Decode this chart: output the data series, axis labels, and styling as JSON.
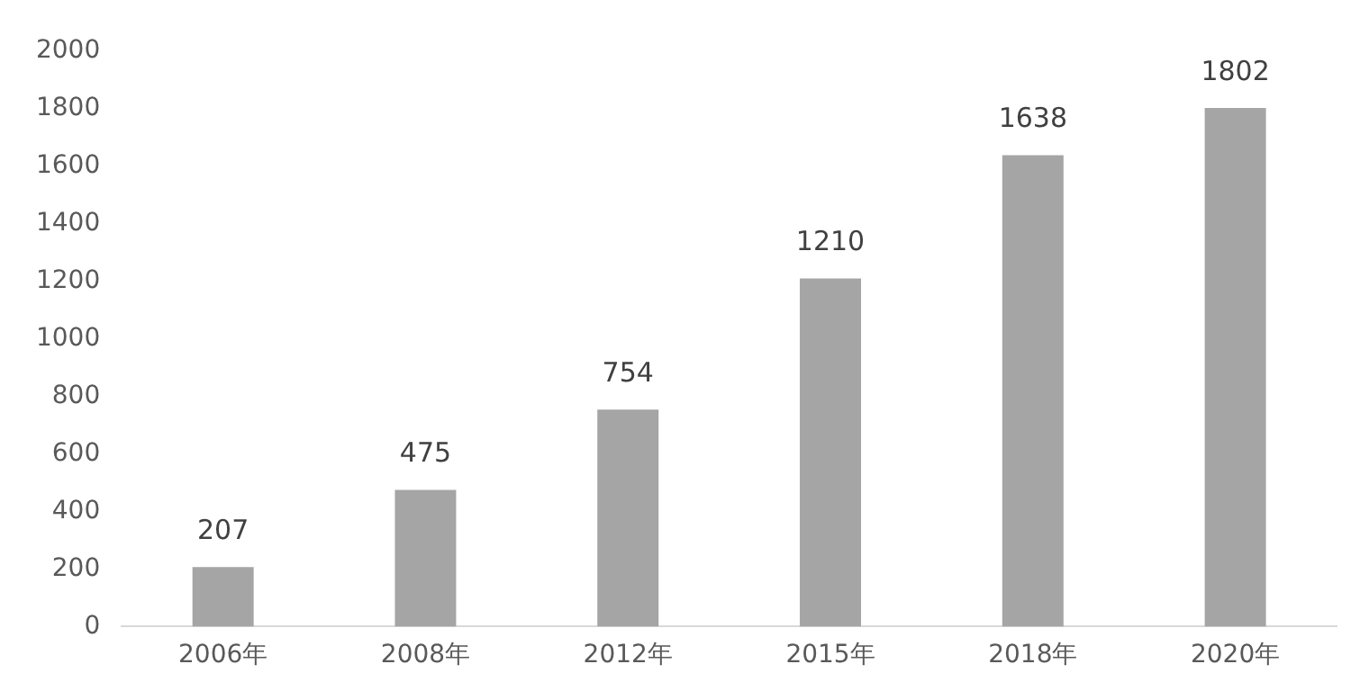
{
  "chart_data": {
    "type": "bar",
    "categories": [
      "2006年",
      "2008年",
      "2012年",
      "2015年",
      "2018年",
      "2020年"
    ],
    "values": [
      207,
      475,
      754,
      1210,
      1638,
      1802
    ],
    "color": "#a5a5a5",
    "ylim": [
      0,
      2000
    ],
    "yticks": [
      0,
      200,
      400,
      600,
      800,
      1000,
      1200,
      1400,
      1600,
      1800,
      2000
    ],
    "grid": false,
    "legend": false,
    "data_labels": true
  }
}
